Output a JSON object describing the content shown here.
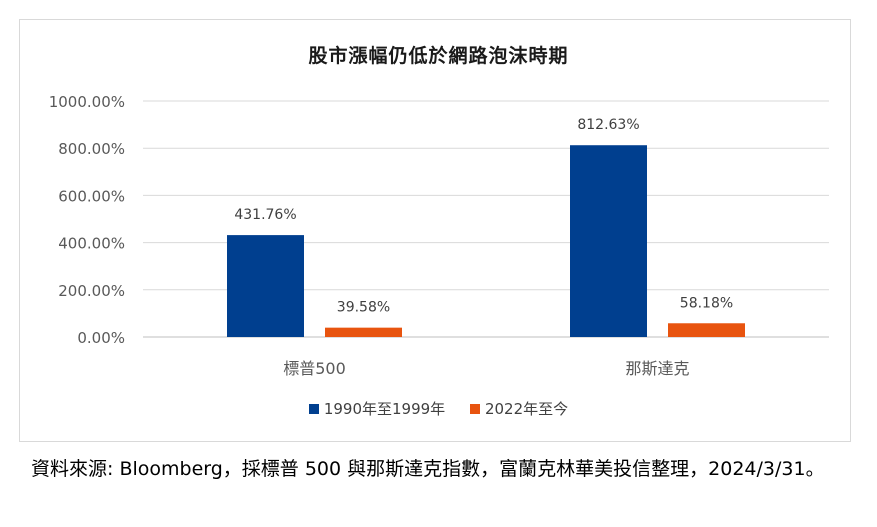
{
  "chart_data": {
    "type": "bar",
    "title": "股市漲幅仍低於網路泡沫時期",
    "categories": [
      "標普500",
      "那斯達克"
    ],
    "series": [
      {
        "name": "1990年至1999年",
        "values": [
          431.76,
          812.63
        ],
        "labels": [
          "431.76%",
          "812.63%"
        ],
        "color": "#003f8f"
      },
      {
        "name": "2022年至今",
        "values": [
          39.58,
          58.18
        ],
        "labels": [
          "39.58%",
          "58.18%"
        ],
        "color": "#e8540f"
      }
    ],
    "ylim": [
      0,
      1000
    ],
    "yticks": [
      "0.00%",
      "200.00%",
      "400.00%",
      "600.00%",
      "800.00%",
      "1000.00%"
    ],
    "grid": true,
    "legend": "bottom"
  },
  "source_note": "資料來源: Bloomberg，採標普 500 與那斯達克指數，富蘭克林華美投信整理，2024/3/31。"
}
